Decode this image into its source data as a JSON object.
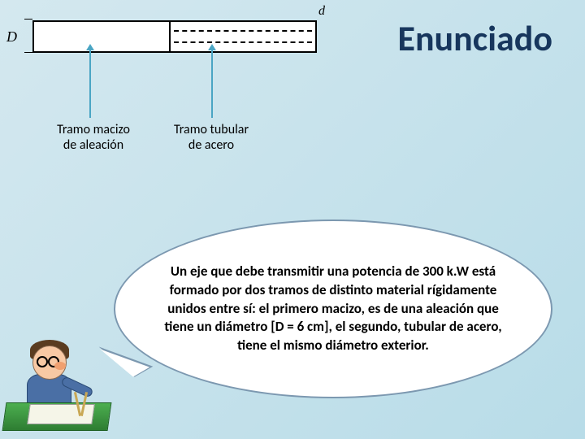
{
  "diagram": {
    "outer_diameter_label": "D",
    "inner_diameter_label": "d",
    "segments": [
      {
        "label_line1": "Tramo macizo",
        "label_line2": "de aleación"
      },
      {
        "label_line1": "Tramo tubular",
        "label_line2": "de acero"
      }
    ],
    "colors": {
      "shaft_fill": "#ffffff",
      "shaft_border": "#000000",
      "arrow_color": "#4aa5c4"
    }
  },
  "heading": {
    "text": "Enunciado",
    "color": "#17365d",
    "fontsize": 44
  },
  "speech_bubble": {
    "text_parts": {
      "p1": "Un eje que debe transmitir una potencia de ",
      "p2": "300 k.W",
      "p3": " está formado por dos tramos de distinto material rígidamente unidos entre sí: el primero macizo, es de una aleación que tiene un diámetro ",
      "p4": "[D = 6 cm]",
      "p5": ", el segundo, tubular de acero, tiene el mismo diámetro exterior."
    },
    "border_color": "#7c98b0",
    "background": "#ffffff",
    "fontsize": 17
  },
  "background_gradient": [
    "#d4e8ef",
    "#b8dce8"
  ]
}
